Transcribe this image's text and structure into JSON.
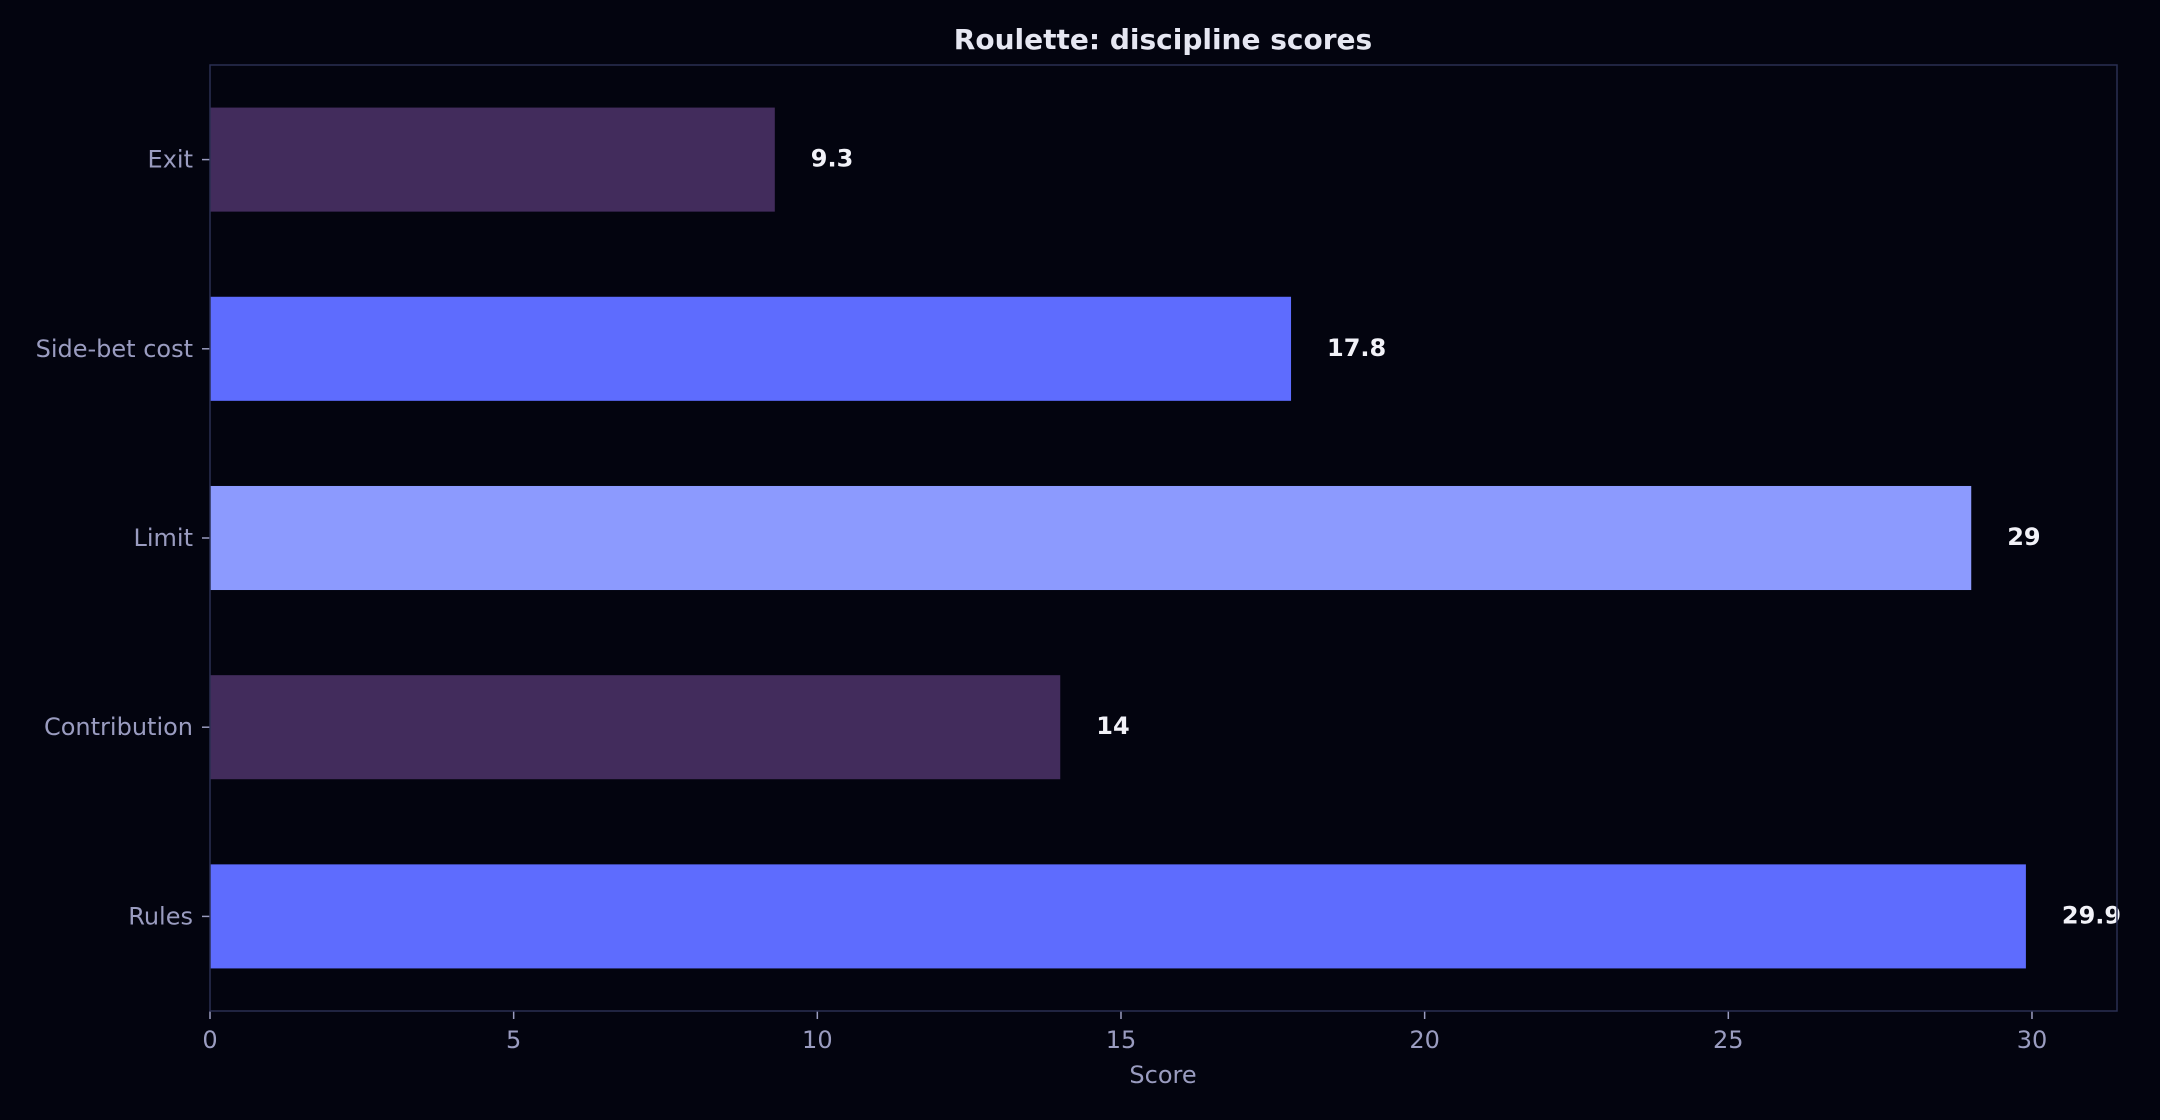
{
  "chart_data": {
    "type": "bar",
    "orientation": "horizontal",
    "title": "Roulette: discipline scores",
    "xlabel": "Score",
    "ylabel": "",
    "xlim": [
      0,
      31.4
    ],
    "x_ticks": [
      0,
      5,
      10,
      15,
      20,
      25,
      30
    ],
    "categories": [
      "Exit",
      "Side-bet cost",
      "Limit",
      "Contribution",
      "Rules"
    ],
    "values": [
      9.3,
      17.8,
      29,
      14,
      29.9
    ],
    "value_labels": [
      "9.3",
      "17.8",
      "29",
      "14",
      "29.9"
    ],
    "bar_colors": [
      "#422c5c",
      "#5e6cfe",
      "#8c9afe",
      "#422c5c",
      "#5e6cfe"
    ],
    "grid": false,
    "legend": "none"
  },
  "colors": {
    "background": "#03040f",
    "axes_frame": "#2a2f52",
    "tick_text": "#9a9cc0",
    "title_text": "#e6e7f2",
    "value_label_text": "#f2f2f8"
  }
}
